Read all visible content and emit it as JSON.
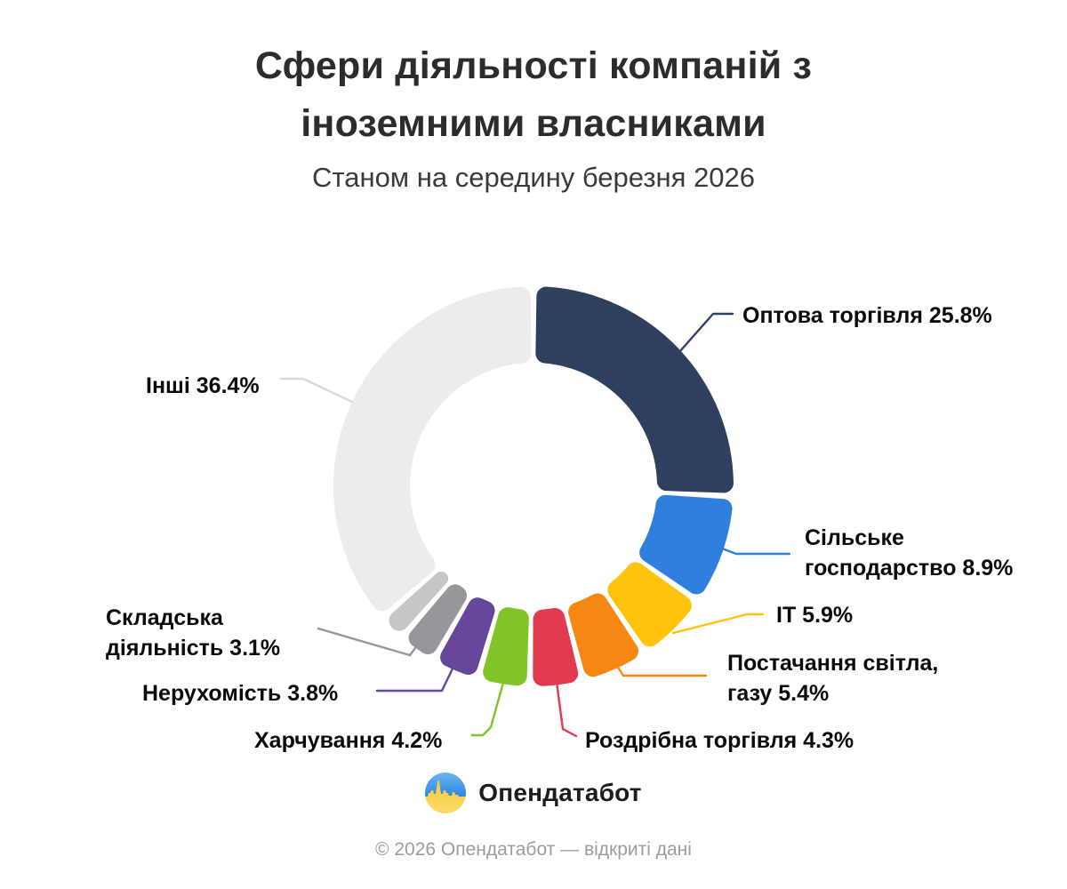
{
  "chart_data": {
    "type": "pie",
    "variant": "donut",
    "title_lines": [
      "Сфери діяльності компаній з",
      "іноземними власниками"
    ],
    "subtitle": "Станом на середину березня 2026",
    "unit": "%",
    "total": 100,
    "legend_position": "none — direct outside labels with leader lines",
    "segments": [
      {
        "id": "optova-torhivlia",
        "name": "Оптова торгівля",
        "value": 25.8,
        "color": "#2E3F5F",
        "label_lines": [
          "Оптова торгівля 25.8%"
        ]
      },
      {
        "id": "silske-hospodarstvo",
        "name": "Сільське господарство",
        "value": 8.9,
        "color": "#2F80DE",
        "label_lines": [
          "Сільське",
          "господарство 8.9%"
        ]
      },
      {
        "id": "it",
        "name": "IT",
        "value": 5.9,
        "color": "#FFC30B",
        "label_lines": [
          "IT 5.9%"
        ]
      },
      {
        "id": "postachannia",
        "name": "Постачання світла, газу",
        "value": 5.4,
        "color": "#F68713",
        "label_lines": [
          "Постачання світла,",
          "газу 5.4%"
        ]
      },
      {
        "id": "rozdribna-torhivlia",
        "name": "Роздрібна торгівля",
        "value": 4.3,
        "color": "#E23A50",
        "label_lines": [
          "Роздрібна торгівля 4.3%"
        ]
      },
      {
        "id": "kharchuvannia",
        "name": "Харчування",
        "value": 4.2,
        "color": "#80C428",
        "label_lines": [
          "Харчування 4.2%"
        ]
      },
      {
        "id": "nerukhomist",
        "name": "Нерухомість",
        "value": 3.8,
        "color": "#65469B",
        "label_lines": [
          "Нерухомість 3.8%"
        ]
      },
      {
        "id": "skladska-diialnist",
        "name": "Складська діяльність",
        "value": 3.1,
        "color": "#97969B",
        "label_lines": [
          "Складська",
          "діяльність 3.1%"
        ]
      },
      {
        "id": "minor-unlabeled",
        "name": "",
        "value": 2.2,
        "color": "#C6C6C9",
        "label_lines": []
      },
      {
        "id": "inshi",
        "name": "Інші",
        "value": 36.4,
        "color": "#ECECEE",
        "leader_color": "#D9D9DD",
        "label_lines": [
          "Інші 36.4%"
        ]
      }
    ]
  },
  "branding": {
    "logo_icon": "opendatabot-logo (blue/yellow circle with skyline pulse)",
    "brand": "Опендатабот"
  },
  "footer": {
    "copyright": "© 2026 Опендатабот — відкриті дані"
  }
}
